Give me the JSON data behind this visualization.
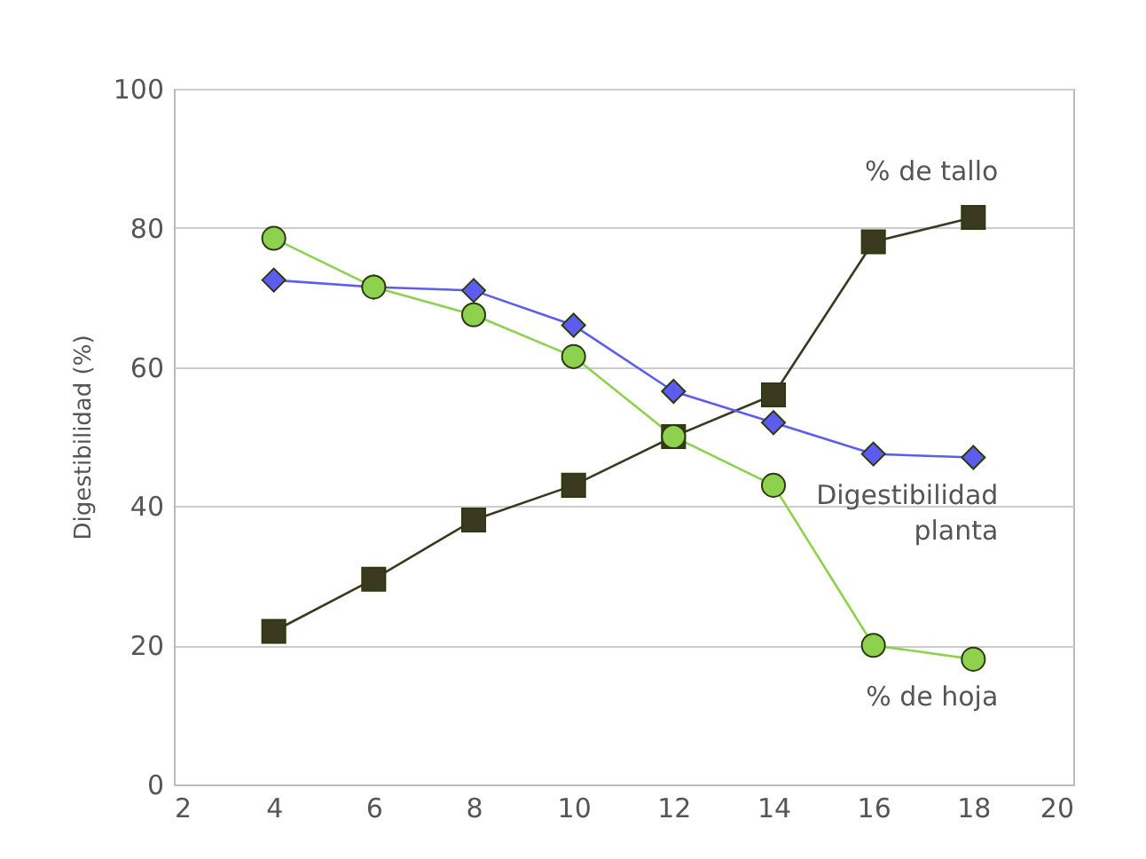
{
  "chart_data": {
    "type": "line",
    "ylabel": "Digestibilidad (%)",
    "x": [
      4,
      6,
      8,
      10,
      12,
      14,
      16,
      18
    ],
    "series": [
      {
        "name": "% de tallo",
        "color": "#3b3a20",
        "marker": "square",
        "values": [
          22,
          29.5,
          38,
          43,
          50,
          56,
          78,
          81.5
        ]
      },
      {
        "name": "Digestibilidad planta",
        "color": "#5c5cf0",
        "marker": "diamond",
        "values": [
          72.5,
          71.5,
          71,
          66,
          56.5,
          52,
          47.5,
          47
        ]
      },
      {
        "name": "% de hoja",
        "color": "#8ed14e",
        "marker": "circle",
        "values": [
          78.5,
          71.5,
          67.5,
          61.5,
          50,
          43,
          20,
          18
        ]
      }
    ],
    "xlim": [
      2,
      20
    ],
    "xticks": [
      2,
      4,
      6,
      8,
      10,
      12,
      14,
      16,
      18,
      20
    ],
    "ylim": [
      0,
      100
    ],
    "yticks": [
      0,
      20,
      40,
      60,
      80,
      100
    ],
    "grid": "y"
  }
}
